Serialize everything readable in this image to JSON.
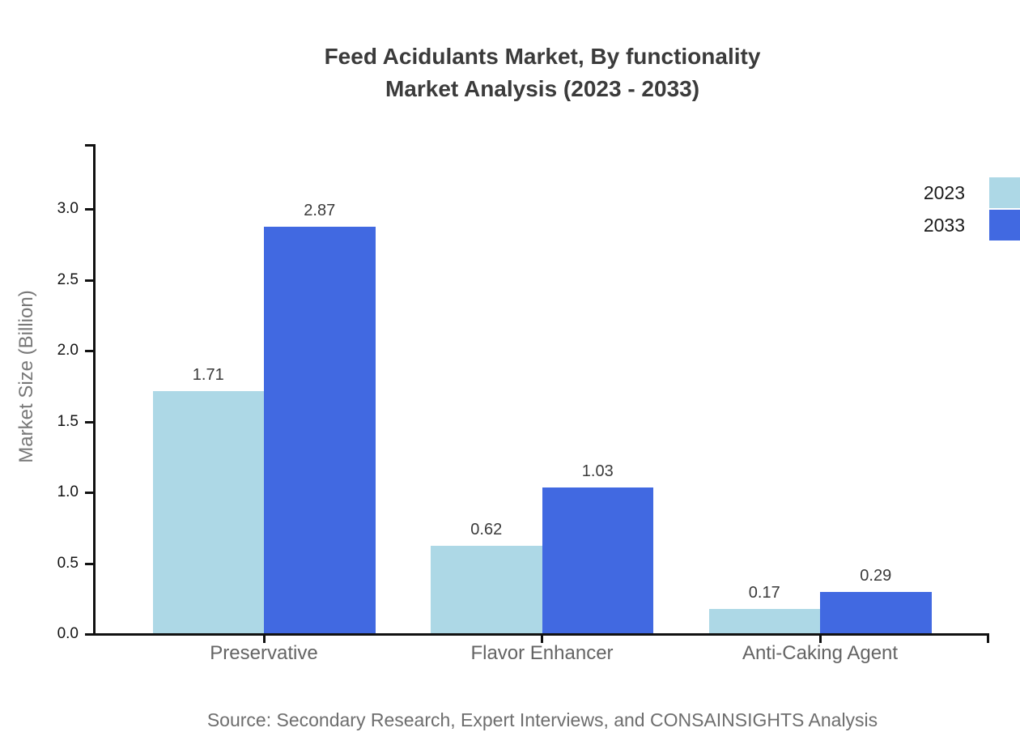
{
  "title": {
    "line1": "Feed Acidulants Market, By functionality",
    "line2": "Market Analysis (2023 - 2033)"
  },
  "source": "Source: Secondary Research, Expert Interviews, and CONSAINSIGHTS Analysis",
  "chart_data": {
    "type": "bar",
    "title": "Feed Acidulants Market, By functionality Market Analysis (2023 - 2033)",
    "categories": [
      "Preservative",
      "Flavor Enhancer",
      "Anti-Caking Agent"
    ],
    "series": [
      {
        "name": "2023",
        "color": "#ADD8E6",
        "values": [
          1.71,
          0.62,
          0.17
        ]
      },
      {
        "name": "2033",
        "color": "#4169E1",
        "values": [
          2.87,
          1.03,
          0.29
        ]
      }
    ],
    "xlabel": "",
    "ylabel": "Market Size (Billion)",
    "yticks": [
      0.0,
      0.5,
      1.0,
      1.5,
      2.0,
      2.5,
      3.0
    ],
    "ylim": [
      0,
      3.45
    ],
    "grid": false,
    "legend_position": "top-right",
    "value_labels": true,
    "axis_color": "#111111",
    "background": "#ffffff"
  }
}
